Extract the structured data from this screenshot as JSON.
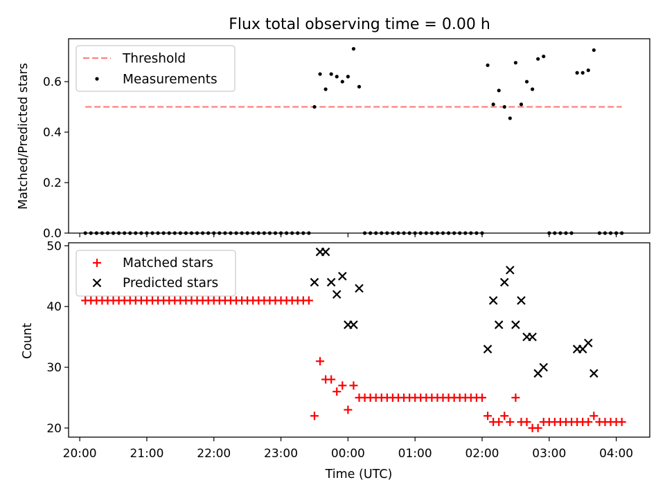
{
  "chart_data": [
    {
      "type": "scatter",
      "title": "Flux total observing time = 0.00 h",
      "ylabel": "Matched/Predicted stars",
      "xlabel": "",
      "xlim": [
        "19:50",
        "04:30"
      ],
      "ylim": [
        0,
        0.77
      ],
      "y_ticks": [
        0.0,
        0.2,
        0.4,
        0.6
      ],
      "y_tick_labels": [
        "0.0",
        "0.2",
        "0.4",
        "0.6"
      ],
      "x_ticks": [
        "20:00",
        "21:00",
        "22:00",
        "23:00",
        "00:00",
        "01:00",
        "02:00",
        "03:00",
        "04:00"
      ],
      "x_tick_labels_visible": false,
      "grid": false,
      "legend_position": "upper-left",
      "series": [
        {
          "name": "Threshold",
          "style": "dashed-line",
          "color": "#ff7f7f",
          "x": [
            "20:05",
            "04:05"
          ],
          "y": [
            0.5,
            0.5
          ]
        },
        {
          "name": "Measurements",
          "style": "dot",
          "color": "#000000",
          "x": [
            "20:05",
            "20:10",
            "20:15",
            "20:20",
            "20:25",
            "20:30",
            "20:35",
            "20:40",
            "20:45",
            "20:50",
            "20:55",
            "21:00",
            "21:05",
            "21:10",
            "21:15",
            "21:20",
            "21:25",
            "21:30",
            "21:35",
            "21:40",
            "21:45",
            "21:50",
            "21:55",
            "22:00",
            "22:05",
            "22:10",
            "22:15",
            "22:20",
            "22:25",
            "22:30",
            "22:35",
            "22:40",
            "22:45",
            "22:50",
            "22:55",
            "23:00",
            "23:05",
            "23:10",
            "23:15",
            "23:20",
            "23:25",
            "23:30",
            "23:35",
            "23:40",
            "23:45",
            "23:50",
            "23:55",
            "00:00",
            "00:05",
            "00:10",
            "00:15",
            "00:20",
            "00:25",
            "00:30",
            "00:35",
            "00:40",
            "00:45",
            "00:50",
            "00:55",
            "01:00",
            "01:05",
            "01:10",
            "01:15",
            "01:20",
            "01:25",
            "01:30",
            "01:35",
            "01:40",
            "01:45",
            "01:50",
            "01:55",
            "02:00",
            "02:05",
            "02:10",
            "02:15",
            "02:20",
            "02:25",
            "02:30",
            "02:35",
            "02:40",
            "02:45",
            "02:50",
            "02:55",
            "03:00",
            "03:05",
            "03:10",
            "03:15",
            "03:20",
            "03:25",
            "03:30",
            "03:35",
            "03:40",
            "03:45",
            "03:50",
            "03:55",
            "04:00",
            "04:05"
          ],
          "y": [
            0,
            0,
            0,
            0,
            0,
            0,
            0,
            0,
            0,
            0,
            0,
            0,
            0,
            0,
            0,
            0,
            0,
            0,
            0,
            0,
            0,
            0,
            0,
            0,
            0,
            0,
            0,
            0,
            0,
            0,
            0,
            0,
            0,
            0,
            0,
            0,
            0,
            0,
            0,
            0,
            0,
            0.5,
            0.63,
            0.57,
            0.63,
            0.62,
            0.6,
            0.62,
            0.73,
            0.58,
            0,
            0,
            0,
            0,
            0,
            0,
            0,
            0,
            0,
            0,
            0,
            0,
            0,
            0,
            0,
            0,
            0,
            0,
            0,
            0,
            0,
            0,
            0.665,
            0.51,
            0.565,
            0.5,
            0.455,
            0.675,
            0.51,
            0.6,
            0.57,
            0.69,
            0.7,
            0,
            0,
            0,
            0,
            0,
            0.635,
            0.635,
            0.645,
            0.725,
            0,
            0,
            0,
            0,
            0
          ]
        }
      ]
    },
    {
      "type": "scatter",
      "title": "",
      "ylabel": "Count",
      "xlabel": "Time (UTC)",
      "xlim": [
        "19:50",
        "04:30"
      ],
      "ylim": [
        18.5,
        50.5
      ],
      "y_ticks": [
        20,
        30,
        40,
        50
      ],
      "y_tick_labels": [
        "20",
        "30",
        "40",
        "50"
      ],
      "x_ticks": [
        "20:00",
        "21:00",
        "22:00",
        "23:00",
        "00:00",
        "01:00",
        "02:00",
        "03:00",
        "04:00"
      ],
      "x_tick_labels": [
        "20:00",
        "21:00",
        "22:00",
        "23:00",
        "00:00",
        "01:00",
        "02:00",
        "03:00",
        "04:00"
      ],
      "grid": false,
      "legend_position": "upper-left",
      "series": [
        {
          "name": "Matched stars",
          "marker": "plus",
          "color": "#ff0000",
          "x": [
            "20:05",
            "20:10",
            "20:15",
            "20:20",
            "20:25",
            "20:30",
            "20:35",
            "20:40",
            "20:45",
            "20:50",
            "20:55",
            "21:00",
            "21:05",
            "21:10",
            "21:15",
            "21:20",
            "21:25",
            "21:30",
            "21:35",
            "21:40",
            "21:45",
            "21:50",
            "21:55",
            "22:00",
            "22:05",
            "22:10",
            "22:15",
            "22:20",
            "22:25",
            "22:30",
            "22:35",
            "22:40",
            "22:45",
            "22:50",
            "22:55",
            "23:00",
            "23:05",
            "23:10",
            "23:15",
            "23:20",
            "23:25",
            "23:30",
            "23:35",
            "23:40",
            "23:45",
            "23:50",
            "23:55",
            "00:00",
            "00:05",
            "00:10",
            "00:15",
            "00:20",
            "00:25",
            "00:30",
            "00:35",
            "00:40",
            "00:45",
            "00:50",
            "00:55",
            "01:00",
            "01:05",
            "01:10",
            "01:15",
            "01:20",
            "01:25",
            "01:30",
            "01:35",
            "01:40",
            "01:45",
            "01:50",
            "01:55",
            "02:00",
            "02:05",
            "02:10",
            "02:15",
            "02:20",
            "02:25",
            "02:30",
            "02:35",
            "02:40",
            "02:45",
            "02:50",
            "02:55",
            "03:00",
            "03:05",
            "03:10",
            "03:15",
            "03:20",
            "03:25",
            "03:30",
            "03:35",
            "03:40",
            "03:45",
            "03:50",
            "03:55",
            "04:00",
            "04:05"
          ],
          "y": [
            41,
            41,
            41,
            41,
            41,
            41,
            41,
            41,
            41,
            41,
            41,
            41,
            41,
            41,
            41,
            41,
            41,
            41,
            41,
            41,
            41,
            41,
            41,
            41,
            41,
            41,
            41,
            41,
            41,
            41,
            41,
            41,
            41,
            41,
            41,
            41,
            41,
            41,
            41,
            41,
            41,
            22,
            31,
            28,
            28,
            26,
            27,
            23,
            27,
            25,
            25,
            25,
            25,
            25,
            25,
            25,
            25,
            25,
            25,
            25,
            25,
            25,
            25,
            25,
            25,
            25,
            25,
            25,
            25,
            25,
            25,
            25,
            22,
            21,
            21,
            22,
            21,
            25,
            21,
            21,
            20,
            20,
            21,
            21,
            21,
            21,
            21,
            21,
            21,
            21,
            21,
            22,
            21,
            21,
            21,
            21,
            21
          ]
        },
        {
          "name": "Predicted stars",
          "marker": "x",
          "color": "#000000",
          "x": [
            "23:30",
            "23:35",
            "23:40",
            "23:45",
            "23:50",
            "23:55",
            "00:00",
            "00:05",
            "00:10",
            "02:05",
            "02:10",
            "02:15",
            "02:20",
            "02:25",
            "02:30",
            "02:35",
            "02:40",
            "02:45",
            "02:50",
            "02:55",
            "03:25",
            "03:30",
            "03:35",
            "03:40"
          ],
          "y": [
            44,
            49,
            49,
            44,
            42,
            45,
            37,
            37,
            43,
            33,
            41,
            37,
            44,
            46,
            37,
            41,
            35,
            35,
            29,
            30,
            33,
            33,
            34,
            29
          ]
        }
      ]
    }
  ]
}
